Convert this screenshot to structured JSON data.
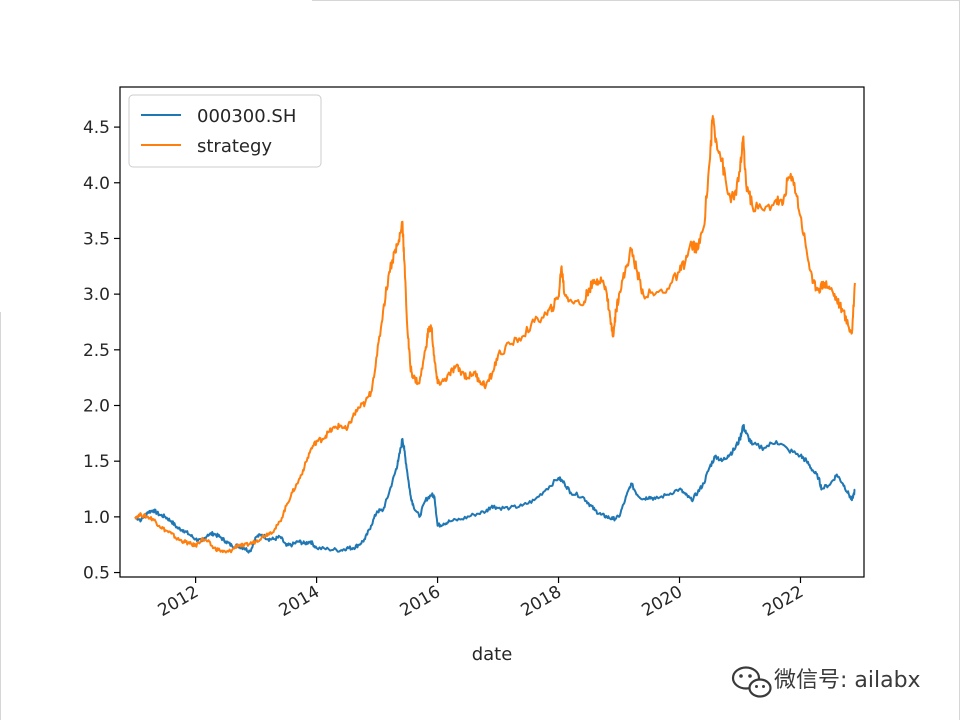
{
  "chart_data": {
    "type": "line",
    "xlabel": "date",
    "ylabel": "",
    "xlim": [
      2010.75,
      2023.05
    ],
    "ylim": [
      0.46,
      4.86
    ],
    "x_ticks": [
      2012,
      2014,
      2016,
      2018,
      2020,
      2022
    ],
    "x_tick_labels": [
      "2012",
      "2014",
      "2016",
      "2018",
      "2020",
      "2022"
    ],
    "y_ticks": [
      0.5,
      1.0,
      1.5,
      2.0,
      2.5,
      3.0,
      3.5,
      4.0,
      4.5
    ],
    "y_tick_labels": [
      "0.5",
      "1.0",
      "1.5",
      "2.0",
      "2.5",
      "3.0",
      "3.5",
      "4.0",
      "4.5"
    ],
    "legend_position": "top-left",
    "grid": false,
    "series": [
      {
        "name": "000300.SH",
        "color": "#1f77b4",
        "points": [
          [
            2011.0,
            1.0
          ],
          [
            2011.1,
            0.97
          ],
          [
            2011.2,
            1.04
          ],
          [
            2011.3,
            1.06
          ],
          [
            2011.4,
            1.02
          ],
          [
            2011.5,
            1.0
          ],
          [
            2011.6,
            0.96
          ],
          [
            2011.7,
            0.9
          ],
          [
            2011.8,
            0.88
          ],
          [
            2011.9,
            0.84
          ],
          [
            2012.0,
            0.8
          ],
          [
            2012.1,
            0.78
          ],
          [
            2012.2,
            0.84
          ],
          [
            2012.3,
            0.85
          ],
          [
            2012.4,
            0.82
          ],
          [
            2012.5,
            0.78
          ],
          [
            2012.6,
            0.74
          ],
          [
            2012.7,
            0.74
          ],
          [
            2012.8,
            0.72
          ],
          [
            2012.9,
            0.69
          ],
          [
            2013.0,
            0.82
          ],
          [
            2013.1,
            0.84
          ],
          [
            2013.2,
            0.8
          ],
          [
            2013.3,
            0.8
          ],
          [
            2013.4,
            0.82
          ],
          [
            2013.5,
            0.74
          ],
          [
            2013.6,
            0.75
          ],
          [
            2013.7,
            0.78
          ],
          [
            2013.8,
            0.76
          ],
          [
            2013.9,
            0.78
          ],
          [
            2014.0,
            0.72
          ],
          [
            2014.2,
            0.71
          ],
          [
            2014.4,
            0.7
          ],
          [
            2014.5,
            0.72
          ],
          [
            2014.6,
            0.72
          ],
          [
            2014.7,
            0.75
          ],
          [
            2014.8,
            0.8
          ],
          [
            2014.9,
            0.92
          ],
          [
            2015.0,
            1.05
          ],
          [
            2015.1,
            1.06
          ],
          [
            2015.2,
            1.22
          ],
          [
            2015.3,
            1.4
          ],
          [
            2015.35,
            1.5
          ],
          [
            2015.42,
            1.7
          ],
          [
            2015.45,
            1.6
          ],
          [
            2015.5,
            1.4
          ],
          [
            2015.55,
            1.2
          ],
          [
            2015.6,
            1.1
          ],
          [
            2015.7,
            1.0
          ],
          [
            2015.8,
            1.15
          ],
          [
            2015.9,
            1.2
          ],
          [
            2015.95,
            1.18
          ],
          [
            2016.0,
            0.92
          ],
          [
            2016.1,
            0.94
          ],
          [
            2016.2,
            0.96
          ],
          [
            2016.4,
            0.98
          ],
          [
            2016.6,
            1.02
          ],
          [
            2016.8,
            1.05
          ],
          [
            2016.9,
            1.1
          ],
          [
            2017.0,
            1.08
          ],
          [
            2017.2,
            1.08
          ],
          [
            2017.4,
            1.1
          ],
          [
            2017.6,
            1.15
          ],
          [
            2017.8,
            1.25
          ],
          [
            2018.0,
            1.35
          ],
          [
            2018.1,
            1.3
          ],
          [
            2018.2,
            1.22
          ],
          [
            2018.4,
            1.18
          ],
          [
            2018.5,
            1.12
          ],
          [
            2018.6,
            1.06
          ],
          [
            2018.7,
            1.02
          ],
          [
            2018.8,
            1.0
          ],
          [
            2018.9,
            0.98
          ],
          [
            2019.0,
            1.0
          ],
          [
            2019.1,
            1.15
          ],
          [
            2019.2,
            1.3
          ],
          [
            2019.3,
            1.2
          ],
          [
            2019.4,
            1.16
          ],
          [
            2019.5,
            1.18
          ],
          [
            2019.6,
            1.16
          ],
          [
            2019.8,
            1.2
          ],
          [
            2020.0,
            1.25
          ],
          [
            2020.1,
            1.2
          ],
          [
            2020.2,
            1.15
          ],
          [
            2020.3,
            1.22
          ],
          [
            2020.4,
            1.3
          ],
          [
            2020.5,
            1.45
          ],
          [
            2020.6,
            1.55
          ],
          [
            2020.7,
            1.5
          ],
          [
            2020.8,
            1.55
          ],
          [
            2020.9,
            1.6
          ],
          [
            2021.0,
            1.7
          ],
          [
            2021.05,
            1.82
          ],
          [
            2021.1,
            1.75
          ],
          [
            2021.2,
            1.65
          ],
          [
            2021.4,
            1.62
          ],
          [
            2021.6,
            1.68
          ],
          [
            2021.8,
            1.6
          ],
          [
            2022.0,
            1.55
          ],
          [
            2022.1,
            1.5
          ],
          [
            2022.2,
            1.42
          ],
          [
            2022.3,
            1.35
          ],
          [
            2022.35,
            1.25
          ],
          [
            2022.5,
            1.3
          ],
          [
            2022.6,
            1.38
          ],
          [
            2022.7,
            1.3
          ],
          [
            2022.8,
            1.2
          ],
          [
            2022.85,
            1.15
          ],
          [
            2022.9,
            1.24
          ]
        ]
      },
      {
        "name": "strategy",
        "color": "#ff7f0e",
        "points": [
          [
            2011.0,
            1.0
          ],
          [
            2011.1,
            1.02
          ],
          [
            2011.2,
            1.0
          ],
          [
            2011.3,
            0.98
          ],
          [
            2011.4,
            0.92
          ],
          [
            2011.5,
            0.88
          ],
          [
            2011.6,
            0.85
          ],
          [
            2011.7,
            0.8
          ],
          [
            2011.8,
            0.78
          ],
          [
            2011.9,
            0.76
          ],
          [
            2012.0,
            0.74
          ],
          [
            2012.1,
            0.8
          ],
          [
            2012.2,
            0.78
          ],
          [
            2012.3,
            0.72
          ],
          [
            2012.4,
            0.7
          ],
          [
            2012.5,
            0.68
          ],
          [
            2012.6,
            0.7
          ],
          [
            2012.7,
            0.75
          ],
          [
            2012.8,
            0.74
          ],
          [
            2012.9,
            0.76
          ],
          [
            2013.0,
            0.78
          ],
          [
            2013.1,
            0.82
          ],
          [
            2013.2,
            0.85
          ],
          [
            2013.3,
            0.88
          ],
          [
            2013.4,
            0.96
          ],
          [
            2013.5,
            1.1
          ],
          [
            2013.6,
            1.22
          ],
          [
            2013.7,
            1.32
          ],
          [
            2013.8,
            1.45
          ],
          [
            2013.9,
            1.6
          ],
          [
            2014.0,
            1.68
          ],
          [
            2014.1,
            1.7
          ],
          [
            2014.2,
            1.76
          ],
          [
            2014.3,
            1.8
          ],
          [
            2014.4,
            1.82
          ],
          [
            2014.5,
            1.78
          ],
          [
            2014.6,
            1.9
          ],
          [
            2014.7,
            1.98
          ],
          [
            2014.8,
            2.02
          ],
          [
            2014.9,
            2.12
          ],
          [
            2015.0,
            2.45
          ],
          [
            2015.1,
            2.85
          ],
          [
            2015.2,
            3.2
          ],
          [
            2015.3,
            3.4
          ],
          [
            2015.35,
            3.45
          ],
          [
            2015.42,
            3.65
          ],
          [
            2015.45,
            3.3
          ],
          [
            2015.5,
            2.7
          ],
          [
            2015.55,
            2.35
          ],
          [
            2015.6,
            2.25
          ],
          [
            2015.7,
            2.2
          ],
          [
            2015.8,
            2.5
          ],
          [
            2015.85,
            2.68
          ],
          [
            2015.9,
            2.7
          ],
          [
            2015.95,
            2.4
          ],
          [
            2016.0,
            2.2
          ],
          [
            2016.1,
            2.22
          ],
          [
            2016.2,
            2.28
          ],
          [
            2016.3,
            2.35
          ],
          [
            2016.4,
            2.3
          ],
          [
            2016.5,
            2.25
          ],
          [
            2016.6,
            2.3
          ],
          [
            2016.7,
            2.22
          ],
          [
            2016.8,
            2.18
          ],
          [
            2016.9,
            2.28
          ],
          [
            2017.0,
            2.45
          ],
          [
            2017.2,
            2.55
          ],
          [
            2017.4,
            2.62
          ],
          [
            2017.6,
            2.75
          ],
          [
            2017.8,
            2.82
          ],
          [
            2017.9,
            2.88
          ],
          [
            2018.0,
            2.98
          ],
          [
            2018.05,
            3.25
          ],
          [
            2018.1,
            3.0
          ],
          [
            2018.2,
            2.95
          ],
          [
            2018.4,
            2.9
          ],
          [
            2018.5,
            3.05
          ],
          [
            2018.6,
            3.1
          ],
          [
            2018.7,
            3.15
          ],
          [
            2018.8,
            3.0
          ],
          [
            2018.85,
            2.8
          ],
          [
            2018.9,
            2.62
          ],
          [
            2018.95,
            2.85
          ],
          [
            2019.0,
            3.0
          ],
          [
            2019.1,
            3.2
          ],
          [
            2019.2,
            3.4
          ],
          [
            2019.3,
            3.2
          ],
          [
            2019.4,
            3.0
          ],
          [
            2019.6,
            3.0
          ],
          [
            2019.8,
            3.05
          ],
          [
            2020.0,
            3.2
          ],
          [
            2020.1,
            3.3
          ],
          [
            2020.2,
            3.45
          ],
          [
            2020.3,
            3.4
          ],
          [
            2020.4,
            3.6
          ],
          [
            2020.5,
            4.2
          ],
          [
            2020.55,
            4.6
          ],
          [
            2020.6,
            4.4
          ],
          [
            2020.7,
            4.2
          ],
          [
            2020.8,
            3.9
          ],
          [
            2020.9,
            3.85
          ],
          [
            2021.0,
            4.1
          ],
          [
            2021.05,
            4.4
          ],
          [
            2021.1,
            4.0
          ],
          [
            2021.2,
            3.8
          ],
          [
            2021.4,
            3.75
          ],
          [
            2021.6,
            3.85
          ],
          [
            2021.7,
            3.8
          ],
          [
            2021.8,
            4.05
          ],
          [
            2021.9,
            4.0
          ],
          [
            2022.0,
            3.7
          ],
          [
            2022.1,
            3.4
          ],
          [
            2022.2,
            3.1
          ],
          [
            2022.3,
            3.05
          ],
          [
            2022.4,
            3.1
          ],
          [
            2022.5,
            3.05
          ],
          [
            2022.6,
            2.95
          ],
          [
            2022.7,
            2.85
          ],
          [
            2022.8,
            2.7
          ],
          [
            2022.85,
            2.65
          ],
          [
            2022.9,
            3.1
          ]
        ]
      }
    ]
  },
  "watermark": {
    "text": "微信号: ailabx",
    "icon": "wechat-icon"
  }
}
